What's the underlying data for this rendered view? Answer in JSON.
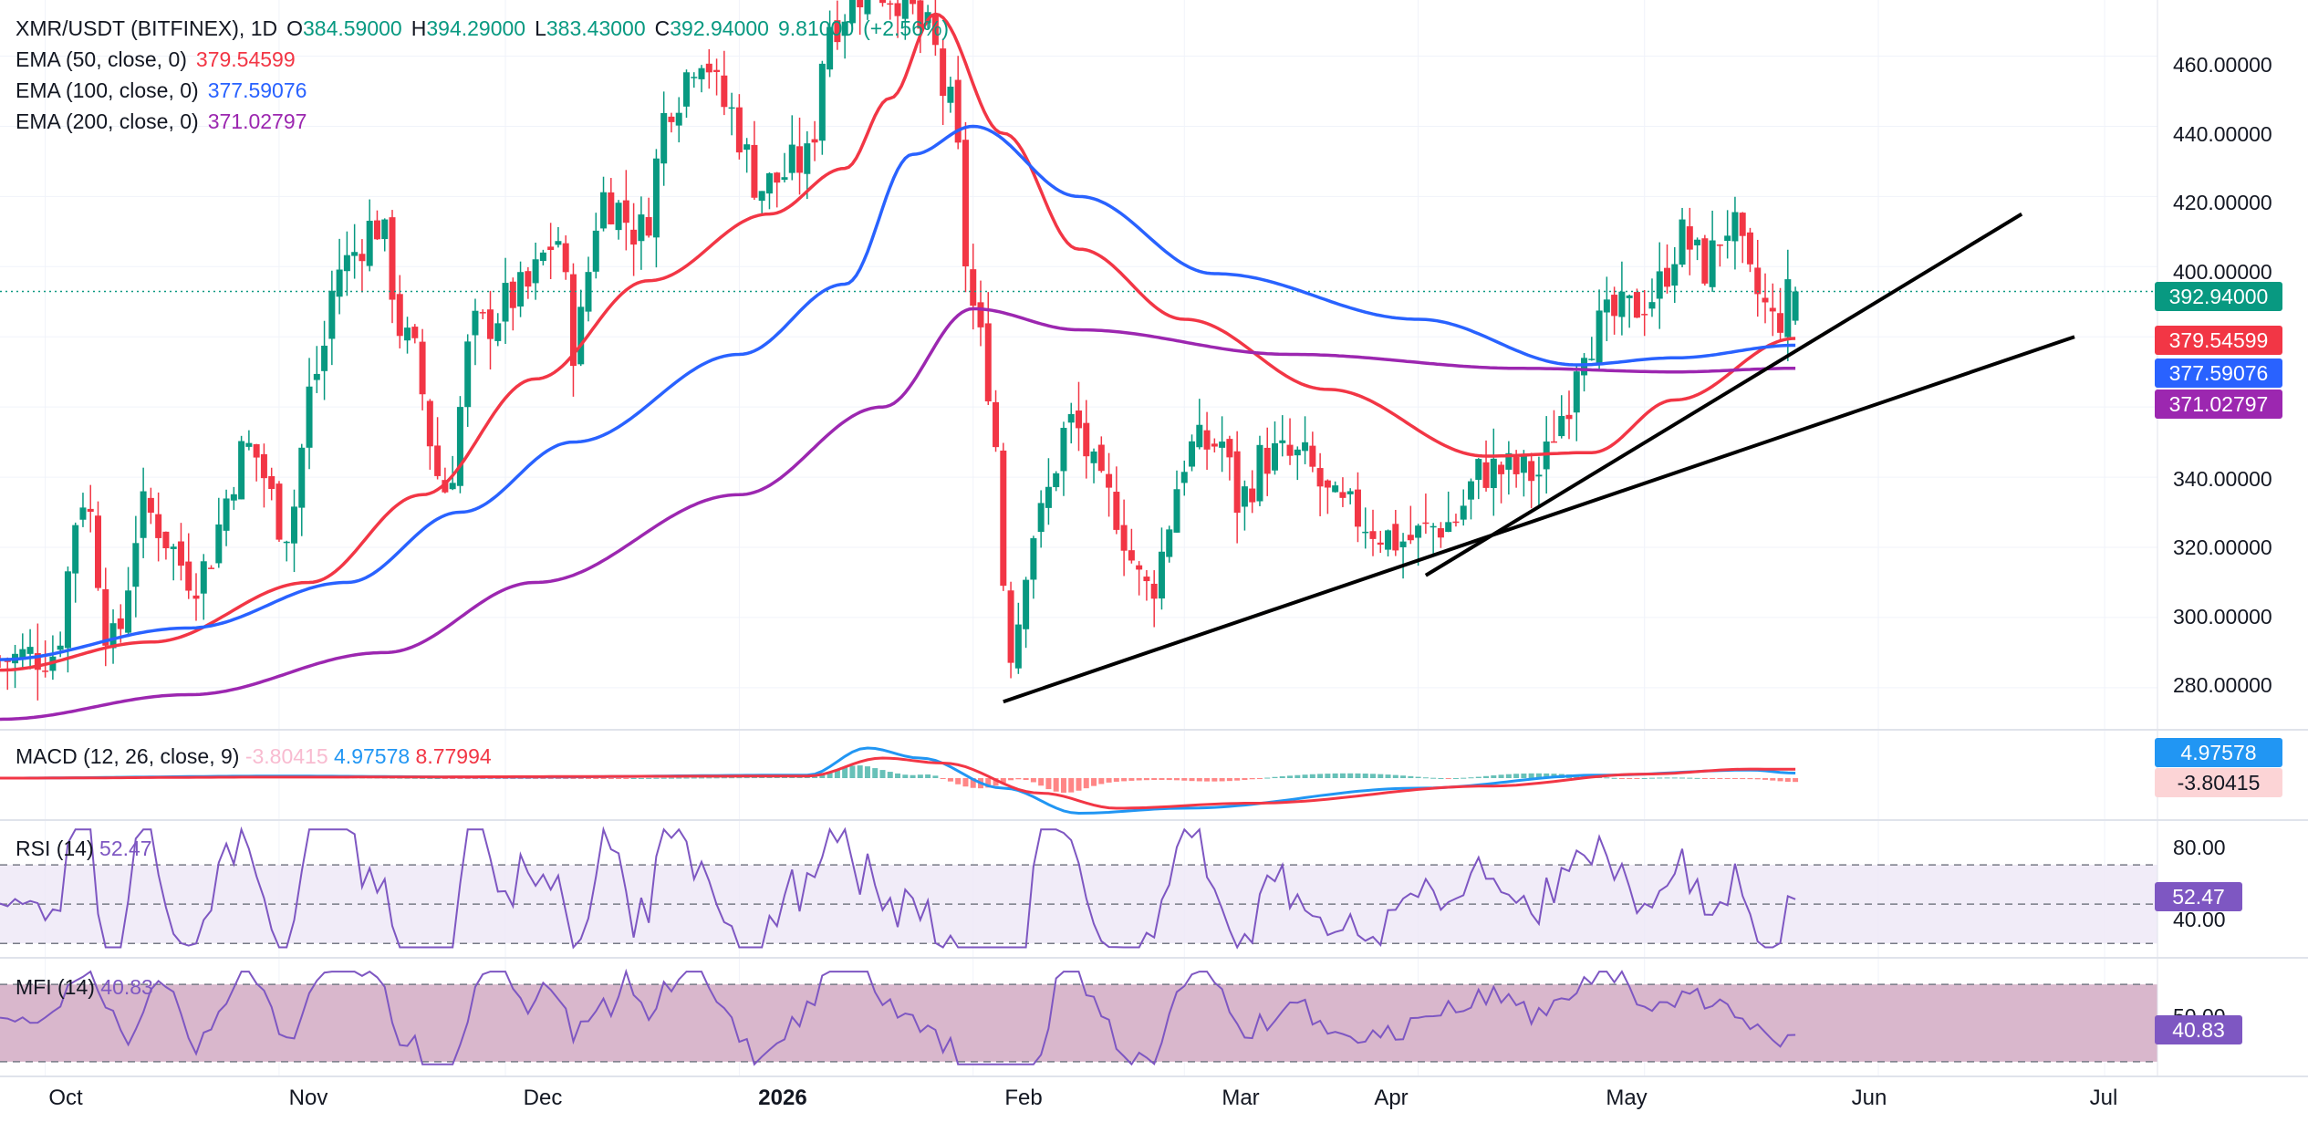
{
  "header": {
    "symbol": "XMR/USDT (BITFINEX), 1D",
    "o_label": "O",
    "o_value": "384.59000",
    "h_label": "H",
    "h_value": "394.29000",
    "l_label": "L",
    "l_value": "383.43000",
    "c_label": "C",
    "c_value": "392.94000",
    "change": "9.81000",
    "change_pct": "(+2.56%)"
  },
  "indicators": {
    "ema50": {
      "label": "EMA (50, close, 0)",
      "value": "379.54599",
      "color": "#f23645"
    },
    "ema100": {
      "label": "EMA (100, close, 0)",
      "value": "377.59076",
      "color": "#2962ff"
    },
    "ema200": {
      "label": "EMA (200, close, 0)",
      "value": "371.02797",
      "color": "#9c27b0"
    },
    "macd": {
      "label": "MACD (12, 26, close, 9)",
      "hist": "-3.80415",
      "macd": "4.97578",
      "signal": "8.77994"
    },
    "rsi": {
      "label": "RSI (14)",
      "value": "52.47",
      "levels": [
        "80.00",
        "40.00"
      ]
    },
    "mfi": {
      "label": "MFI (14)",
      "value": "40.83",
      "level": "50.00"
    }
  },
  "price_axis": [
    "460.00000",
    "440.00000",
    "420.00000",
    "400.00000",
    "340.00000",
    "320.00000",
    "300.00000",
    "280.00000"
  ],
  "price_tags": {
    "last": {
      "value": "392.94000",
      "color": "#089981"
    },
    "ema50": {
      "value": "379.54599",
      "color": "#f23645"
    },
    "ema100": {
      "value": "377.59076",
      "color": "#2962ff"
    },
    "ema200": {
      "value": "371.02797",
      "color": "#9c27b0"
    }
  },
  "time_axis": [
    {
      "label": "Oct",
      "bold": false
    },
    {
      "label": "Nov",
      "bold": false
    },
    {
      "label": "Dec",
      "bold": false
    },
    {
      "label": "2026",
      "bold": true
    },
    {
      "label": "Feb",
      "bold": false
    },
    {
      "label": "Mar",
      "bold": false
    },
    {
      "label": "Apr",
      "bold": false
    },
    {
      "label": "May",
      "bold": false
    },
    {
      "label": "Jun",
      "bold": false
    },
    {
      "label": "Jul",
      "bold": false
    }
  ],
  "chart_data": {
    "type": "candlestick",
    "symbol": "XMR/USDT",
    "interval": "1D",
    "x_range": [
      "2025-09-25",
      "2026-07-08"
    ],
    "y_range": [
      268,
      476
    ],
    "anchor_points": [
      {
        "date": "2025-09-25",
        "close": 288
      },
      {
        "date": "2025-10-02",
        "close": 290
      },
      {
        "date": "2025-10-06",
        "close": 335
      },
      {
        "date": "2025-10-10",
        "close": 292
      },
      {
        "date": "2025-10-14",
        "close": 330
      },
      {
        "date": "2025-10-21",
        "close": 312
      },
      {
        "date": "2025-10-28",
        "close": 348
      },
      {
        "date": "2025-11-02",
        "close": 326
      },
      {
        "date": "2025-11-06",
        "close": 370
      },
      {
        "date": "2025-11-09",
        "close": 400
      },
      {
        "date": "2025-11-14",
        "close": 412
      },
      {
        "date": "2025-11-18",
        "close": 378
      },
      {
        "date": "2025-11-23",
        "close": 337
      },
      {
        "date": "2025-11-27",
        "close": 382
      },
      {
        "date": "2025-12-03",
        "close": 392
      },
      {
        "date": "2025-12-08",
        "close": 408
      },
      {
        "date": "2025-12-10",
        "close": 378
      },
      {
        "date": "2025-12-14",
        "close": 420
      },
      {
        "date": "2025-12-19",
        "close": 410
      },
      {
        "date": "2025-12-23",
        "close": 448
      },
      {
        "date": "2025-12-27",
        "close": 462
      },
      {
        "date": "2025-12-30",
        "close": 446
      },
      {
        "date": "2026-01-04",
        "close": 423
      },
      {
        "date": "2026-01-10",
        "close": 430
      },
      {
        "date": "2026-01-13",
        "close": 470
      },
      {
        "date": "2026-01-18",
        "close": 480
      },
      {
        "date": "2026-01-22",
        "close": 478
      },
      {
        "date": "2026-01-26",
        "close": 466
      },
      {
        "date": "2026-01-29",
        "close": 445
      },
      {
        "date": "2026-02-01",
        "close": 388
      },
      {
        "date": "2026-02-03",
        "close": 368
      },
      {
        "date": "2026-02-06",
        "close": 292
      },
      {
        "date": "2026-02-09",
        "close": 325
      },
      {
        "date": "2026-02-14",
        "close": 355
      },
      {
        "date": "2026-02-19",
        "close": 333
      },
      {
        "date": "2026-02-24",
        "close": 308
      },
      {
        "date": "2026-03-02",
        "close": 348
      },
      {
        "date": "2026-03-06",
        "close": 350
      },
      {
        "date": "2026-03-08",
        "close": 333
      },
      {
        "date": "2026-03-12",
        "close": 346
      },
      {
        "date": "2026-03-16",
        "close": 345
      },
      {
        "date": "2026-03-22",
        "close": 330
      },
      {
        "date": "2026-03-30",
        "close": 322
      },
      {
        "date": "2026-04-05",
        "close": 327
      },
      {
        "date": "2026-04-10",
        "close": 342
      },
      {
        "date": "2026-04-17",
        "close": 341
      },
      {
        "date": "2026-04-20",
        "close": 358
      },
      {
        "date": "2026-04-23",
        "close": 380
      },
      {
        "date": "2026-04-28",
        "close": 386
      },
      {
        "date": "2026-05-02",
        "close": 392
      },
      {
        "date": "2026-05-06",
        "close": 408
      },
      {
        "date": "2026-05-09",
        "close": 400
      },
      {
        "date": "2026-05-12",
        "close": 412
      },
      {
        "date": "2026-05-16",
        "close": 392
      },
      {
        "date": "2026-05-18",
        "close": 384
      },
      {
        "date": "2026-05-21",
        "close": 392.94
      }
    ],
    "ema_series": [
      {
        "name": "EMA (50, close, 0)",
        "color": "#f23645",
        "points": [
          {
            "date": "2025-09-25",
            "value": 285
          },
          {
            "date": "2025-10-15",
            "value": 293
          },
          {
            "date": "2025-11-05",
            "value": 310
          },
          {
            "date": "2025-11-20",
            "value": 335
          },
          {
            "date": "2025-12-05",
            "value": 368
          },
          {
            "date": "2025-12-20",
            "value": 396
          },
          {
            "date": "2026-01-05",
            "value": 415
          },
          {
            "date": "2026-01-15",
            "value": 428
          },
          {
            "date": "2026-01-21",
            "value": 448
          },
          {
            "date": "2026-01-27",
            "value": 472
          },
          {
            "date": "2026-02-05",
            "value": 438
          },
          {
            "date": "2026-02-15",
            "value": 405
          },
          {
            "date": "2026-03-01",
            "value": 385
          },
          {
            "date": "2026-03-20",
            "value": 365
          },
          {
            "date": "2026-04-10",
            "value": 346
          },
          {
            "date": "2026-04-24",
            "value": 347
          },
          {
            "date": "2026-05-05",
            "value": 362
          },
          {
            "date": "2026-05-21",
            "value": 379.54599
          }
        ]
      },
      {
        "name": "EMA (100, close, 0)",
        "color": "#2962ff",
        "points": [
          {
            "date": "2025-09-25",
            "value": 288
          },
          {
            "date": "2025-10-20",
            "value": 297
          },
          {
            "date": "2025-11-10",
            "value": 310
          },
          {
            "date": "2025-11-25",
            "value": 330
          },
          {
            "date": "2025-12-10",
            "value": 350
          },
          {
            "date": "2026-01-01",
            "value": 375
          },
          {
            "date": "2026-01-15",
            "value": 395
          },
          {
            "date": "2026-01-24",
            "value": 432
          },
          {
            "date": "2026-02-01",
            "value": 440
          },
          {
            "date": "2026-02-15",
            "value": 420
          },
          {
            "date": "2026-03-05",
            "value": 398
          },
          {
            "date": "2026-04-01",
            "value": 385
          },
          {
            "date": "2026-04-22",
            "value": 372
          },
          {
            "date": "2026-05-05",
            "value": 374
          },
          {
            "date": "2026-05-21",
            "value": 377.59076
          }
        ]
      },
      {
        "name": "EMA (200, close, 0)",
        "color": "#9c27b0",
        "points": [
          {
            "date": "2025-09-25",
            "value": 271
          },
          {
            "date": "2025-10-20",
            "value": 278
          },
          {
            "date": "2025-11-15",
            "value": 290
          },
          {
            "date": "2025-12-05",
            "value": 310
          },
          {
            "date": "2026-01-01",
            "value": 335
          },
          {
            "date": "2026-01-20",
            "value": 360
          },
          {
            "date": "2026-02-01",
            "value": 388
          },
          {
            "date": "2026-02-15",
            "value": 382
          },
          {
            "date": "2026-03-15",
            "value": 375
          },
          {
            "date": "2026-04-15",
            "value": 371
          },
          {
            "date": "2026-05-05",
            "value": 370
          },
          {
            "date": "2026-05-21",
            "value": 371.02797
          }
        ]
      }
    ],
    "trendlines": [
      {
        "from": {
          "date": "2026-02-05",
          "value": 276
        },
        "to": {
          "date": "2026-06-27",
          "value": 380
        }
      },
      {
        "from": {
          "date": "2026-04-02",
          "value": 312
        },
        "to": {
          "date": "2026-06-20",
          "value": 415
        }
      }
    ],
    "macd": {
      "hist": -3.80415,
      "macd": 4.97578,
      "signal": 8.77994
    },
    "rsi": {
      "value": 52.47,
      "upper": 80,
      "lower": 40
    },
    "mfi": {
      "value": 40.83
    },
    "grid": true
  }
}
